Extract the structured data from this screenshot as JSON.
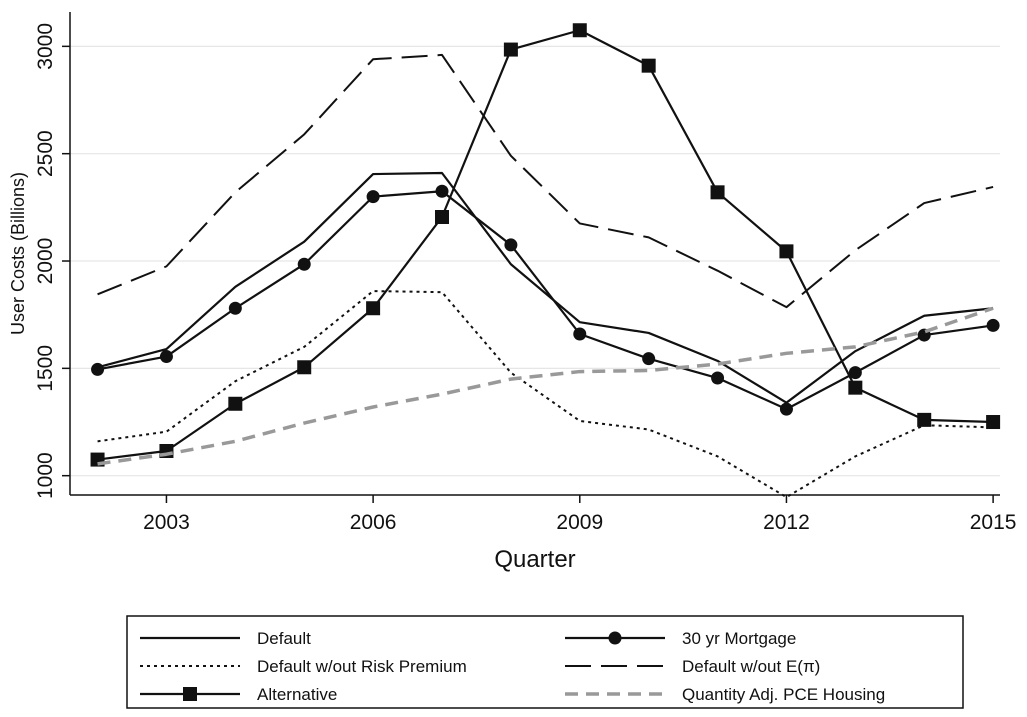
{
  "chart_data": {
    "type": "line",
    "xlabel": "Quarter",
    "ylabel": "User Costs (Billions)",
    "x": [
      2002,
      2003,
      2004,
      2005,
      2006,
      2007,
      2008,
      2009,
      2010,
      2011,
      2012,
      2013,
      2014,
      2015
    ],
    "xlim": [
      2001.6,
      2015.1
    ],
    "ylim": [
      910,
      3160
    ],
    "xticks": [
      "2003",
      "2006",
      "2009",
      "2012",
      "2015"
    ],
    "yticks": [
      "1000",
      "1500",
      "2000",
      "2500",
      "3000"
    ],
    "grid": true,
    "legend_position": "bottom",
    "series": [
      {
        "name": "Default",
        "style": "solid",
        "marker": "none",
        "color": "#111111",
        "values": [
          1505,
          1590,
          1880,
          2090,
          2405,
          2410,
          1985,
          1715,
          1665,
          1535,
          1340,
          1580,
          1745,
          1780
        ]
      },
      {
        "name": "30 yr Mortgage",
        "style": "solid",
        "marker": "circle",
        "color": "#111111",
        "values": [
          1495,
          1555,
          1780,
          1985,
          2300,
          2325,
          2075,
          1660,
          1545,
          1455,
          1310,
          1480,
          1655,
          1700
        ]
      },
      {
        "name": "Default w/out Risk Premium",
        "style": "dotted",
        "marker": "none",
        "color": "#111111",
        "values": [
          1160,
          1205,
          1440,
          1600,
          1860,
          1855,
          1480,
          1255,
          1215,
          1090,
          900,
          1090,
          1235,
          1225
        ]
      },
      {
        "name": "Default w/out E(π)",
        "style": "longdash",
        "marker": "none",
        "color": "#111111",
        "values": [
          1845,
          1975,
          2320,
          2590,
          2940,
          2960,
          2490,
          2175,
          2110,
          1955,
          1785,
          2050,
          2270,
          2345
        ]
      },
      {
        "name": "Alternative",
        "style": "solid",
        "marker": "square",
        "color": "#111111",
        "values": [
          1075,
          1115,
          1335,
          1505,
          1780,
          2205,
          2985,
          3075,
          2910,
          2320,
          2045,
          1410,
          1260,
          1250
        ]
      },
      {
        "name": "Quantity Adj. PCE Housing",
        "style": "dash",
        "marker": "none",
        "color": "#999999",
        "values": [
          1055,
          1100,
          1160,
          1245,
          1320,
          1380,
          1450,
          1485,
          1490,
          1520,
          1570,
          1600,
          1670,
          1780
        ]
      }
    ]
  }
}
